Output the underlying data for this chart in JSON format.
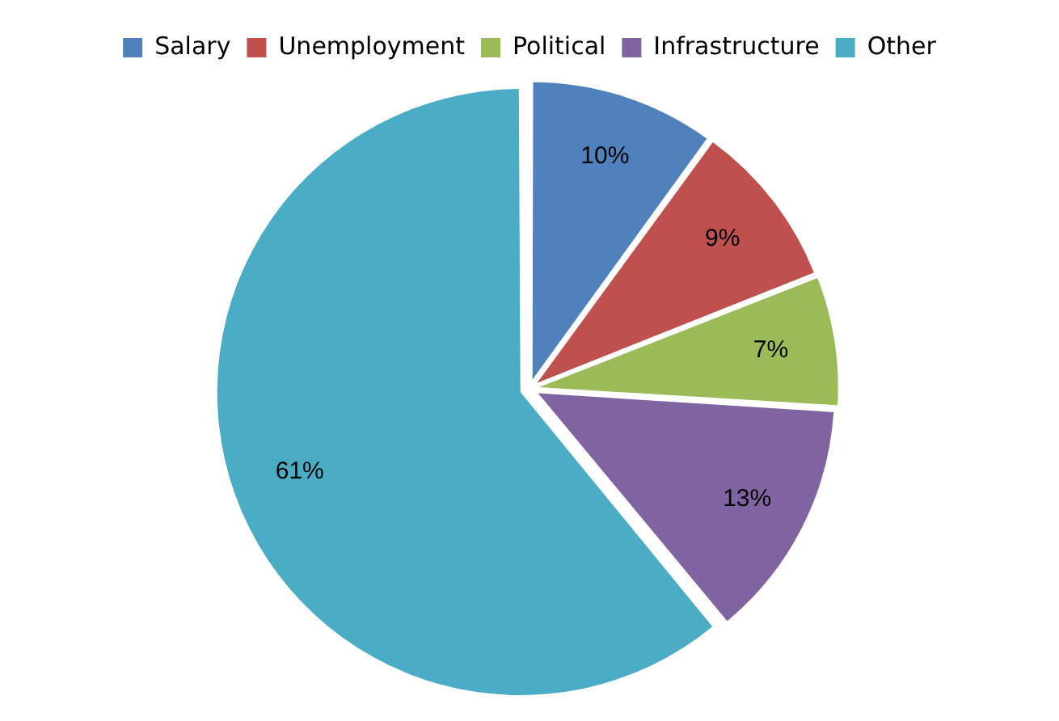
{
  "chart_data": {
    "type": "pie",
    "categories": [
      "Salary",
      "Unemployment",
      "Political",
      "Infrastructure",
      "Other"
    ],
    "values": [
      10,
      9,
      7,
      13,
      61
    ],
    "colors": [
      "#4f81bd",
      "#c0504d",
      "#9bbb59",
      "#8064a2",
      "#4bacc6"
    ],
    "value_labels": [
      "10%",
      "9%",
      "7%",
      "13%",
      "61%"
    ],
    "legend": "top"
  }
}
